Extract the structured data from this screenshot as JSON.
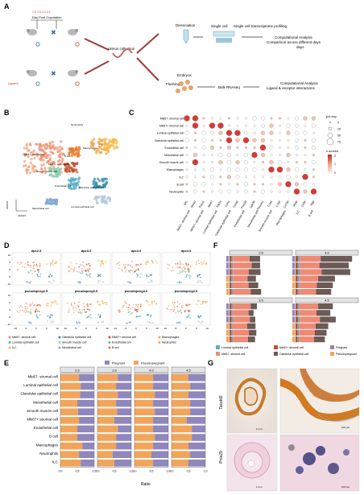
{
  "panels": {
    "A": "A",
    "B": "B",
    "C": "C",
    "D": "D",
    "E": "E",
    "F": "F",
    "G": "G"
  },
  "a": {
    "day_title": "Day Post Copulation",
    "days": [
      "2.5",
      "3.5",
      "4.0",
      "4.5"
    ],
    "ligated": "(ligated)",
    "uterus_collection": "Uterus collection",
    "dissociation": "Dissociation",
    "single_cell": "Single cell",
    "sc_profiling": "Single cell transcriptome profiling",
    "comp1_title": "Computational Analysis",
    "comp1_sub": "Comparison across different days",
    "flushing": "Flushing",
    "embryos": "Embryos",
    "bulk": "Bulk RNAseq",
    "comp2_title": "Computational Analysis",
    "comp2_sub": "Ligand & receptor interactions"
  },
  "b": {
    "labels": [
      "Neutrophils",
      "Mki67- stromal cell",
      "Macrophages",
      "ILC",
      "B cell",
      "Mki67+ stromal cell",
      "Smooth muscle cell",
      "Endothelial cell",
      "Glandular epithelial cell",
      "Mesothelial cell",
      "Luminal epithelial cell"
    ],
    "axis_y": "UMAP2",
    "axis_x": "UMAP1"
  },
  "c": {
    "rows": [
      "Mki67- stromal cell",
      "Mki67+ stromal cell",
      "Luminal epithelial cell",
      "Glandular epithelial cell",
      "Endothelial cell",
      "Mesothelial cell",
      "Smooth muscle cell",
      "Macrophages",
      "ILC",
      "B cell",
      "Neutrophils"
    ],
    "genes": [
      "Wt1",
      "Mmp2",
      "Pcbd1",
      "Mki67",
      "Top2a",
      "Cdh1",
      "Foxa2",
      "Prss29",
      "Upk3b",
      "Pecam1",
      "C1qa",
      "C1qb",
      "Cd79b",
      "Mrap",
      "Cd3e",
      "Mgp"
    ],
    "group_labels": [
      "Mki67- stromal cell",
      "Mki67+ stromal cell",
      "Luminal epithelial cell",
      "Glandular epithelial cell",
      "Endothelial cell",
      "Mesothelial cell",
      "Smooth muscle cell",
      "Macrophages",
      "ILC",
      "B cell"
    ],
    "legend_pct_title": "pct.exp",
    "legend_pct_values": [
      "0",
      "25",
      "50",
      "75"
    ],
    "legend_z_title": "z-scores",
    "legend_z_ticks": [
      "2",
      "1",
      "0"
    ]
  },
  "d": {
    "titles": [
      "dpc2.5",
      "dpc3.5",
      "dpc4.0",
      "dpc4.5",
      "pseudopreg2.5",
      "pseudopreg3.5",
      "pseudopreg4.0",
      "pseudopreg4.5"
    ],
    "y_ticks": [
      "10",
      "5",
      "0",
      "-5",
      "-10"
    ],
    "x_ticks": [
      "-10",
      "-5",
      "0",
      "5",
      "10"
    ],
    "legend": [
      "Mki67- stromal cell",
      "Glandular epithelial cell",
      "Mki67+ stromal cell",
      "Macrophages",
      "Luminal epithelial cell",
      "Smooth muscle cell",
      "Endothelial cell",
      "Neutrophils",
      "ILC",
      "Mesothelial cell",
      "B cell"
    ]
  },
  "e": {
    "legend": [
      "Pregnant",
      "Pseudopregnant"
    ],
    "facets": [
      "2.5",
      "3.5",
      "4.0",
      "4.5"
    ],
    "x_ticks": [
      "0.0",
      "0.5",
      "1.0"
    ],
    "xlabel": "Ratio"
  },
  "f": {
    "legend": [
      "Luminal epithelial cell",
      "Mki67- stromal cell",
      "Mki67+ stromal cell",
      "Glandular epithelial cell",
      "Pregnant",
      "Pseudopregnant"
    ]
  },
  "g": {
    "rows": [
      "Tacstd2",
      "Prss29"
    ],
    "scale1": "1 mm",
    "scale2": "100 μm"
  },
  "chart_data": [
    {
      "type": "bar",
      "panel": "E",
      "xlabel": "Ratio",
      "xlim": [
        0,
        1
      ],
      "facets": [
        "2.5",
        "3.5",
        "4.0",
        "4.5"
      ],
      "categories": [
        "Mki67- stromal cell",
        "Luminal epithelial cell",
        "Glandular epithelial cell",
        "Mesothelial cell",
        "Smooth muscle cell",
        "Mki67+ stromal cell",
        "Endothelial cell",
        "B cell",
        "Macrophages",
        "Neutrophils",
        "ILC"
      ],
      "series": [
        {
          "name": "Pseudopregnant",
          "values": [
            [
              0.55,
              0.6,
              0.58,
              0.5,
              0.52,
              0.55,
              0.5,
              0.5,
              0.65,
              0.55,
              0.6
            ],
            [
              0.6,
              0.55,
              0.6,
              0.55,
              0.58,
              0.5,
              0.6,
              0.55,
              0.55,
              0.45,
              0.5
            ],
            [
              0.55,
              0.55,
              0.6,
              0.55,
              0.6,
              0.55,
              0.55,
              0.6,
              0.55,
              0.5,
              0.55
            ],
            [
              0.5,
              0.55,
              0.5,
              0.55,
              0.55,
              0.45,
              0.6,
              0.6,
              0.5,
              0.55,
              0.5
            ]
          ]
        },
        {
          "name": "Pregnant",
          "values": [
            [
              0.45,
              0.4,
              0.42,
              0.5,
              0.48,
              0.45,
              0.5,
              0.5,
              0.35,
              0.45,
              0.4
            ],
            [
              0.4,
              0.45,
              0.4,
              0.45,
              0.42,
              0.5,
              0.4,
              0.45,
              0.45,
              0.55,
              0.5
            ],
            [
              0.45,
              0.45,
              0.4,
              0.45,
              0.4,
              0.45,
              0.45,
              0.4,
              0.45,
              0.5,
              0.45
            ],
            [
              0.5,
              0.45,
              0.5,
              0.45,
              0.45,
              0.55,
              0.4,
              0.4,
              0.5,
              0.45,
              0.5
            ]
          ]
        }
      ]
    },
    {
      "type": "bar",
      "panel": "F",
      "facets": [
        "2.5",
        "4.0",
        "3.5",
        "4.5"
      ],
      "stack": [
        "Mki67+ stromal cell",
        "Luminal epithelial cell",
        "Mki67- stromal cell",
        "Glandular epithelial cell"
      ],
      "categories": [
        "Pregnant",
        "Pregnant",
        "Pregnant",
        "Pseudopregnant",
        "Pseudopregnant",
        "Pseudopregnant"
      ],
      "xlim": [
        0,
        1500
      ],
      "values": [
        [
          [
            50,
            30,
            400,
            250
          ],
          [
            45,
            35,
            450,
            200
          ],
          [
            50,
            30,
            380,
            280
          ],
          [
            40,
            40,
            350,
            200
          ],
          [
            45,
            30,
            380,
            230
          ],
          [
            50,
            35,
            420,
            250
          ]
        ],
        [
          [
            60,
            40,
            500,
            750
          ],
          [
            55,
            35,
            480,
            700
          ],
          [
            60,
            45,
            520,
            680
          ],
          [
            50,
            40,
            450,
            400
          ],
          [
            55,
            35,
            420,
            380
          ],
          [
            50,
            40,
            400,
            360
          ]
        ],
        [
          [
            50,
            35,
            420,
            150
          ],
          [
            45,
            30,
            380,
            120
          ],
          [
            50,
            35,
            400,
            130
          ],
          [
            40,
            30,
            350,
            200
          ],
          [
            45,
            35,
            380,
            180
          ],
          [
            50,
            30,
            360,
            170
          ]
        ],
        [
          [
            55,
            35,
            450,
            350
          ],
          [
            50,
            30,
            420,
            330
          ],
          [
            60,
            40,
            480,
            380
          ],
          [
            45,
            35,
            400,
            300
          ],
          [
            50,
            30,
            380,
            280
          ],
          [
            45,
            35,
            360,
            260
          ]
        ]
      ]
    }
  ],
  "colors": {
    "pregnant": "#8f87bd",
    "pseudopregnant": "#f2a55a",
    "luminal": "#5aaec8",
    "mki67_minus": "#f08a75",
    "mki67_plus": "#c2502f",
    "glandular": "#6b5a55",
    "strip": "#e3e3e3"
  }
}
